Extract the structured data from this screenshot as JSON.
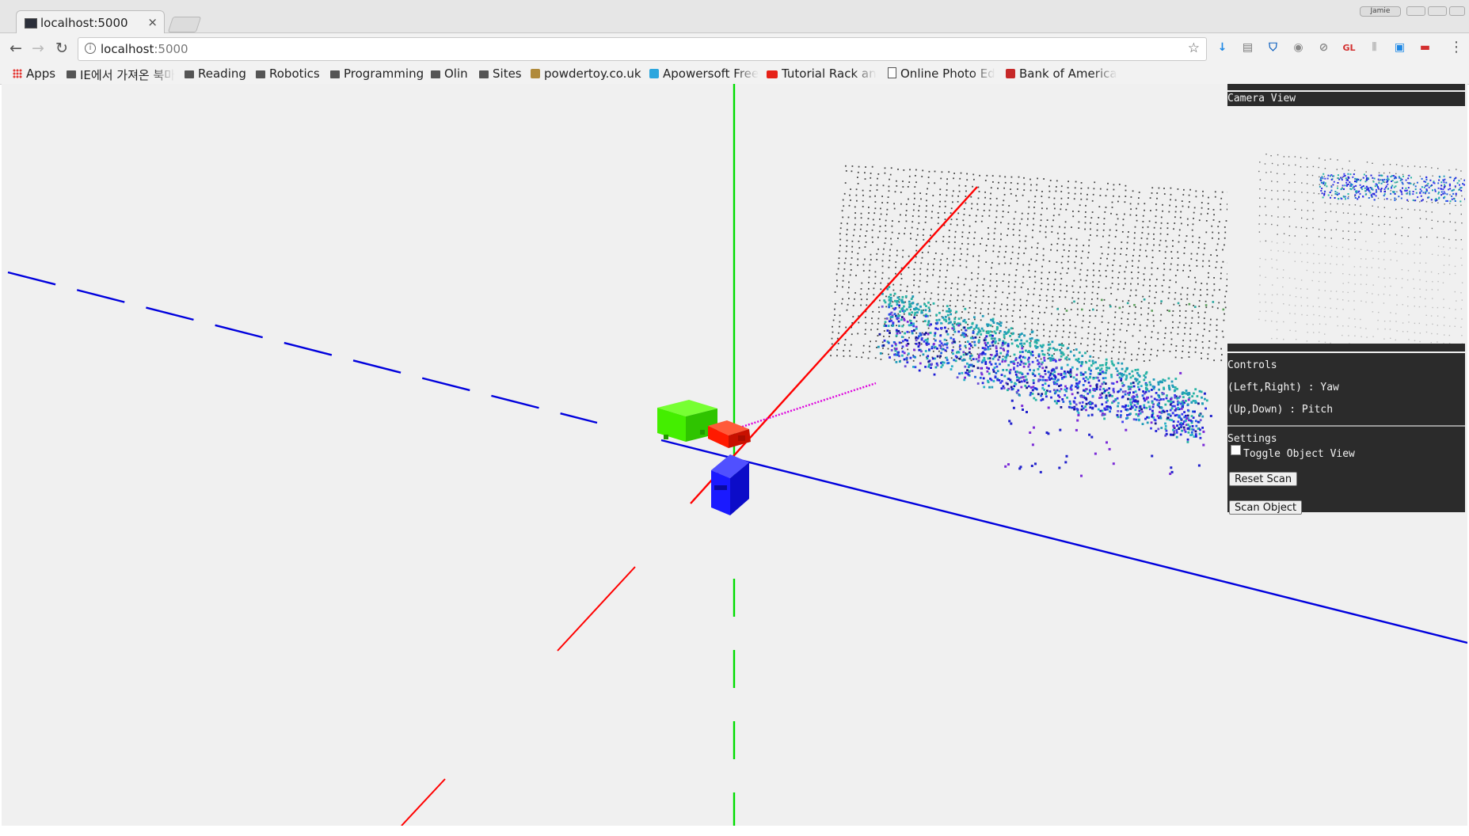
{
  "browser": {
    "tab_title": "localhost:5000",
    "tab_close": "×",
    "url_host": "localhost",
    "url_port": ":5000",
    "user_chip": "Jamie"
  },
  "bookmarks": [
    {
      "label": "Apps",
      "icon": "apps-grid-icon"
    },
    {
      "label": "IE에서 가져온 북마",
      "icon": "folder-icon"
    },
    {
      "label": "Reading",
      "icon": "folder-icon"
    },
    {
      "label": "Robotics",
      "icon": "folder-icon"
    },
    {
      "label": "Programming",
      "icon": "folder-icon"
    },
    {
      "label": "Olin",
      "icon": "folder-icon"
    },
    {
      "label": "Sites",
      "icon": "folder-icon"
    },
    {
      "label": "powdertoy.co.uk",
      "icon": "powdertoy-icon"
    },
    {
      "label": "Apowersoft Free",
      "icon": "apowersoft-icon"
    },
    {
      "label": "Tutorial Rack anc",
      "icon": "youtube-icon"
    },
    {
      "label": "Online Photo Edi",
      "icon": "page-icon"
    },
    {
      "label": "Bank of America",
      "icon": "bank-of-america-icon"
    }
  ],
  "extensions": [
    {
      "icon": "download-extension-icon",
      "glyph": "↓",
      "color": "#1e88e5"
    },
    {
      "icon": "reader-extension-icon",
      "glyph": "▤",
      "color": "#777"
    },
    {
      "icon": "shield-extension-icon",
      "glyph": "⛉",
      "color": "#1565c0"
    },
    {
      "icon": "incognito-extension-icon",
      "glyph": "◉",
      "color": "#888"
    },
    {
      "icon": "block-extension-icon",
      "glyph": "⊘",
      "color": "#888"
    },
    {
      "icon": "gl-extension-icon",
      "glyph": "GL",
      "color": "#d32f2f"
    },
    {
      "icon": "pause-extension-icon",
      "glyph": "⫴",
      "color": "#bbb"
    },
    {
      "icon": "window-extension-icon",
      "glyph": "▣",
      "color": "#1e88e5"
    },
    {
      "icon": "red-extension-icon",
      "glyph": "▬",
      "color": "#d32f2f"
    }
  ],
  "panels": {
    "camera_title": "Camera View",
    "controls_title": "Controls",
    "controls_yaw": "(Left,Right) : Yaw",
    "controls_pitch": "(Up,Down) : Pitch",
    "settings_title": "Settings",
    "toggle_label": "Toggle Object View",
    "toggle_checked": false,
    "reset_button": "Reset Scan",
    "scan_button": "Scan Object"
  },
  "scene_colors": {
    "x_axis": "#ff0000",
    "y_axis": "#00dd00",
    "z_axis": "#0000dd",
    "laser": "#dd00dd",
    "servo_green": "#44ee00",
    "servo_red": "#ff1a00",
    "servo_blue": "#1a1aff"
  }
}
